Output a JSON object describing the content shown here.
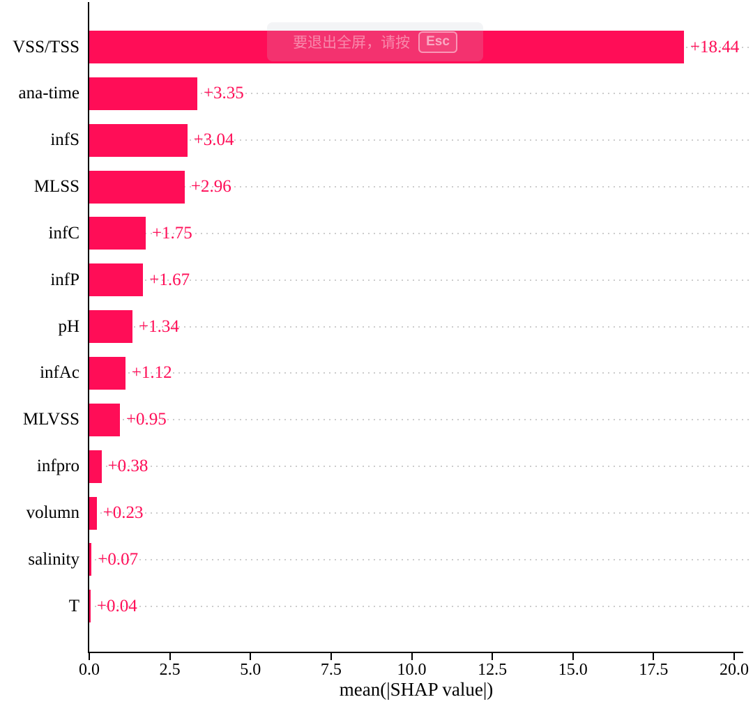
{
  "chart_data": {
    "type": "bar",
    "orientation": "horizontal",
    "title": "",
    "xlabel": "mean(|SHAP value|)",
    "ylabel": "",
    "categories": [
      "VSS/TSS",
      "ana-time",
      "infS",
      "MLSS",
      "infC",
      "infP",
      "pH",
      "infAc",
      "MLVSS",
      "infpro",
      "volumn",
      "salinity",
      "T"
    ],
    "values": [
      18.44,
      3.35,
      3.04,
      2.96,
      1.75,
      1.67,
      1.34,
      1.12,
      0.95,
      0.38,
      0.23,
      0.07,
      0.04
    ],
    "value_labels": [
      "+18.44",
      "+3.35",
      "+3.04",
      "+2.96",
      "+1.75",
      "+1.67",
      "+1.34",
      "+1.12",
      "+0.95",
      "+0.38",
      "+0.23",
      "+0.07",
      "+0.04"
    ],
    "xticks": [
      0.0,
      2.5,
      5.0,
      7.5,
      10.0,
      12.5,
      15.0,
      17.5,
      20.0
    ],
    "xtick_labels": [
      "0.0",
      "2.5",
      "5.0",
      "7.5",
      "10.0",
      "12.5",
      "15.0",
      "17.5",
      "20.0"
    ],
    "xlim": [
      0,
      20.3
    ],
    "grid": "horizontal dotted line at each bar row, behind bars",
    "legend": null,
    "colors": {
      "bar": "#ff0d57",
      "value_label": "#ff0d57",
      "grid": "#cccccc",
      "axis": "#000000",
      "background": "#ffffff"
    }
  },
  "overlay_toast": {
    "message": "要退出全屏，请按",
    "key_label": "Esc"
  }
}
